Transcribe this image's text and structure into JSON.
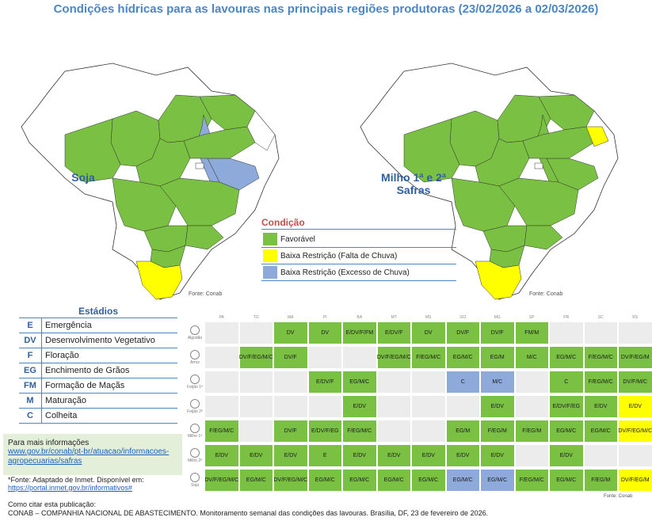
{
  "title": "Condições hídricas para as lavouras nas principais regiões produtoras (23/02/2026 a 02/03/2026)",
  "maps": {
    "soja_label": "Soja",
    "milho_label": "Milho 1ª e 2ª Safras",
    "source": "Fonte: Conab"
  },
  "legend": {
    "title": "Condição",
    "items": [
      {
        "label": "Favorável",
        "color": "#7ac143"
      },
      {
        "label": "Baixa Restrição (Falta de Chuva)",
        "color": "#ffff00"
      },
      {
        "label": "Baixa Restrição (Excesso de Chuva)",
        "color": "#8eaadb"
      }
    ]
  },
  "stages": {
    "title": "Estádios",
    "items": [
      {
        "code": "E",
        "desc": "Emergência"
      },
      {
        "code": "DV",
        "desc": "Desenvolvimento Vegetativo"
      },
      {
        "code": "F",
        "desc": "Floração"
      },
      {
        "code": "EG",
        "desc": "Enchimento de Grãos"
      },
      {
        "code": "FM",
        "desc": "Formação de Maçãs"
      },
      {
        "code": "M",
        "desc": "Maturação"
      },
      {
        "code": "C",
        "desc": "Colheita"
      }
    ]
  },
  "info": {
    "heading": "Para mais informações",
    "link_1": "www.gov.br/conab/pt-br/atuacao/informacoes-",
    "link_2": "agropecuarias/safras"
  },
  "fonte": {
    "text": "*Fonte: Adaptado de Inmet. Disponível em:",
    "link": "https://portal.inmet.gov.br/informativos#"
  },
  "citation": {
    "line_1": "Como citar esta publicação:",
    "line_2": "CONAB – COMPANHIA NACIONAL DE ABASTECIMENTO. Monitoramento semanal das condições das lavouras. Brasília, DF, 23 de fevereiro de 2026."
  },
  "grid": {
    "states": [
      "PA",
      "TO",
      "MA",
      "PI",
      "BA",
      "MT",
      "MS",
      "GO",
      "MG",
      "SP",
      "PR",
      "SC",
      "RS"
    ],
    "crops": [
      "Algodão",
      "Arroz",
      "Feijão 1ª",
      "Feijão 2ª",
      "Milho 1ª",
      "Milho 2ª",
      "Soja"
    ],
    "source": "Fonte: Conab",
    "rows": [
      [
        [
          "",
          ""
        ],
        [
          "",
          ""
        ],
        [
          "DV",
          "g"
        ],
        [
          "DV",
          "g"
        ],
        [
          "E/DV/F/FM",
          "g"
        ],
        [
          "E/DV/F",
          "g"
        ],
        [
          "DV",
          "g"
        ],
        [
          "DV/F",
          "g"
        ],
        [
          "DV/F",
          "g"
        ],
        [
          "FM/M",
          "g"
        ],
        [
          "",
          ""
        ],
        [
          "",
          ""
        ],
        [
          "",
          ""
        ]
      ],
      [
        [
          "",
          ""
        ],
        [
          "DV/F/EG/M/C",
          "g"
        ],
        [
          "DV/F",
          "g"
        ],
        [
          "",
          ""
        ],
        [
          "",
          ""
        ],
        [
          "DV/F/EG/M/C",
          "g"
        ],
        [
          "F/EG/M/C",
          "g"
        ],
        [
          "EG/M/C",
          "g"
        ],
        [
          "EG/M",
          "g"
        ],
        [
          "M/C",
          "g"
        ],
        [
          "EG/M/C",
          "g"
        ],
        [
          "F/EG/M/C",
          "g"
        ],
        [
          "DV/F/EG/M",
          "g"
        ]
      ],
      [
        [
          "",
          ""
        ],
        [
          "",
          ""
        ],
        [
          "",
          ""
        ],
        [
          "E/DV/F",
          "g"
        ],
        [
          "EG/M/C",
          "g"
        ],
        [
          "",
          ""
        ],
        [
          "",
          ""
        ],
        [
          "C",
          "b"
        ],
        [
          "M/C",
          "b"
        ],
        [
          "",
          ""
        ],
        [
          "C",
          "g"
        ],
        [
          "F/EG/M/C",
          "g"
        ],
        [
          "DV/F/M/C",
          "g"
        ]
      ],
      [
        [
          "",
          ""
        ],
        [
          "",
          ""
        ],
        [
          "",
          ""
        ],
        [
          "",
          ""
        ],
        [
          "E/DV",
          "g"
        ],
        [
          "",
          ""
        ],
        [
          "",
          ""
        ],
        [
          "",
          ""
        ],
        [
          "E/DV",
          "g"
        ],
        [
          "",
          ""
        ],
        [
          "E/DV/F/EG",
          "g"
        ],
        [
          "E/DV",
          "g"
        ],
        [
          "E/DV",
          "y"
        ]
      ],
      [
        [
          "F/EG/M/C",
          "g"
        ],
        [
          "",
          ""
        ],
        [
          "DV/F",
          "g"
        ],
        [
          "E/DV/F/EG",
          "g"
        ],
        [
          "F/EG/M/C",
          "g"
        ],
        [
          "",
          ""
        ],
        [
          "",
          ""
        ],
        [
          "EG/M",
          "g"
        ],
        [
          "F/EG/M",
          "g"
        ],
        [
          "F/EG/M",
          "g"
        ],
        [
          "EG/M/C",
          "g"
        ],
        [
          "EG/M/C",
          "g"
        ],
        [
          "DV/F/EG/M/C",
          "y"
        ]
      ],
      [
        [
          "E/DV",
          "g"
        ],
        [
          "E/DV",
          "g"
        ],
        [
          "E/DV",
          "g"
        ],
        [
          "E",
          "g"
        ],
        [
          "E/DV",
          "g"
        ],
        [
          "E/DV",
          "g"
        ],
        [
          "E/DV",
          "g"
        ],
        [
          "E/DV",
          "g"
        ],
        [
          "E/DV",
          "g"
        ],
        [
          "",
          ""
        ],
        [
          "E/DV",
          "g"
        ],
        [
          "",
          ""
        ],
        [
          "",
          ""
        ]
      ],
      [
        [
          "DV/F/EG/M/C",
          "g"
        ],
        [
          "EG/M/C",
          "g"
        ],
        [
          "DV/F/EG/M/C",
          "g"
        ],
        [
          "EG/M/C",
          "g"
        ],
        [
          "EG/M/C",
          "g"
        ],
        [
          "EG/M/C",
          "g"
        ],
        [
          "EG/M/C",
          "g"
        ],
        [
          "EG/M/C",
          "b"
        ],
        [
          "EG/M/C",
          "b"
        ],
        [
          "F/EG/M/C",
          "g"
        ],
        [
          "EG/M/C",
          "g"
        ],
        [
          "F/EG/M",
          "g"
        ],
        [
          "DV/F/EG/M",
          "y"
        ]
      ]
    ]
  }
}
